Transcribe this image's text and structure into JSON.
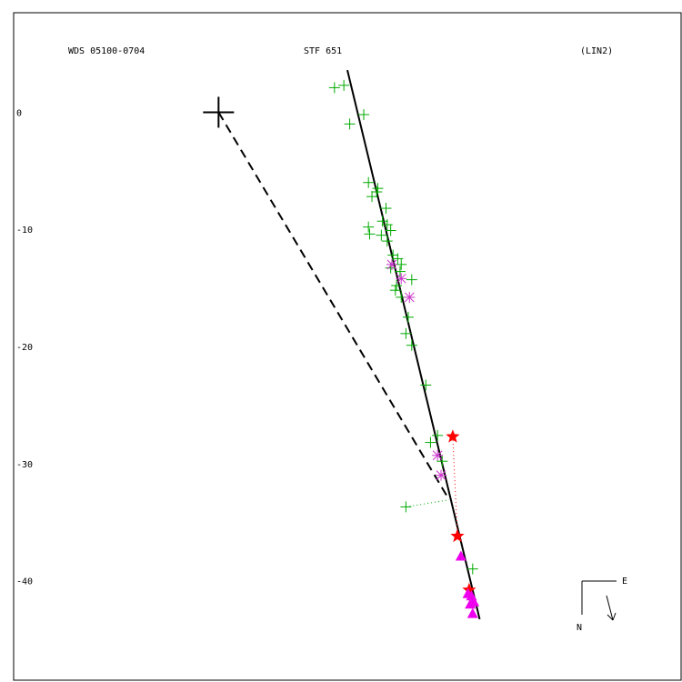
{
  "header": {
    "left": "WDS 05100-0704",
    "center": "STF 651",
    "right": "(LIN2)"
  },
  "chart_data": {
    "type": "scatter",
    "title": "",
    "xlabel": "",
    "ylabel": "",
    "x_units": "arcsec (E positive, displayed to the right)",
    "xlim": [
      -17.5,
      39.5
    ],
    "ylim": [
      -48.5,
      8.5
    ],
    "y_ticks": [
      0,
      -10,
      -20,
      -30,
      -40
    ],
    "y_tick_labels": [
      "0",
      "-10",
      "-20",
      "-30",
      "-40"
    ],
    "primary_star": {
      "x": 0,
      "y": 0
    },
    "linear_fit": {
      "from": [
        11,
        3.6
      ],
      "to": [
        22.3,
        -43.3
      ]
    },
    "dashed_line": {
      "from": [
        0,
        0
      ],
      "to": [
        19.7,
        -33.1
      ]
    },
    "residual_links": [
      {
        "from": [
          16,
          -33.7
        ],
        "to": [
          19.7,
          -33.1
        ],
        "color": "#00aa00"
      },
      {
        "from": [
          20.0,
          -27.7
        ],
        "to": [
          20.4,
          -36.2
        ],
        "color": "#ff0000"
      }
    ],
    "series": [
      {
        "marker": "plus",
        "color": "#00aa00",
        "points": [
          [
            9.9,
            2.1
          ],
          [
            10.7,
            2.3
          ],
          [
            12.4,
            -0.2
          ],
          [
            11.2,
            -1.0
          ],
          [
            12.8,
            -6.0
          ],
          [
            13.6,
            -6.5
          ],
          [
            13.1,
            -7.2
          ],
          [
            13.5,
            -6.8
          ],
          [
            14.3,
            -8.2
          ],
          [
            14.0,
            -9.3
          ],
          [
            12.8,
            -9.8
          ],
          [
            14.4,
            -9.6
          ],
          [
            12.9,
            -10.4
          ],
          [
            13.9,
            -10.5
          ],
          [
            14.7,
            -10.1
          ],
          [
            14.4,
            -11.0
          ],
          [
            14.9,
            -12.2
          ],
          [
            15.3,
            -12.5
          ],
          [
            14.7,
            -13.3
          ],
          [
            15.6,
            -13.0
          ],
          [
            15.5,
            -13.6
          ],
          [
            15.2,
            -14.8
          ],
          [
            16.5,
            -14.3
          ],
          [
            15.1,
            -15.2
          ],
          [
            15.6,
            -15.8
          ],
          [
            16.2,
            -17.5
          ],
          [
            16.0,
            -18.9
          ],
          [
            16.5,
            -19.9
          ],
          [
            17.7,
            -23.3
          ],
          [
            18.1,
            -28.2
          ],
          [
            18.7,
            -27.6
          ],
          [
            19.1,
            -29.8
          ],
          [
            16.0,
            -33.7
          ],
          [
            21.7,
            -39.0
          ]
        ]
      },
      {
        "marker": "asterisk",
        "color": "#cc33cc",
        "points": [
          [
            14.8,
            -13.0
          ],
          [
            15.6,
            -14.2
          ],
          [
            16.3,
            -15.8
          ],
          [
            18.7,
            -29.3
          ],
          [
            19.0,
            -31.0
          ]
        ]
      },
      {
        "marker": "star",
        "color": "#ff0000",
        "points": [
          [
            20.0,
            -27.7
          ],
          [
            20.4,
            -36.2
          ],
          [
            21.4,
            -40.8
          ]
        ]
      },
      {
        "marker": "triangle",
        "color": "#ee00ee",
        "points": [
          [
            20.7,
            -37.9
          ],
          [
            21.3,
            -41.1
          ],
          [
            21.6,
            -41.3
          ],
          [
            21.8,
            -41.8
          ],
          [
            21.5,
            -42.0
          ],
          [
            21.7,
            -42.8
          ]
        ]
      }
    ]
  },
  "compass": {
    "north_label": "N",
    "east_label": "E"
  }
}
